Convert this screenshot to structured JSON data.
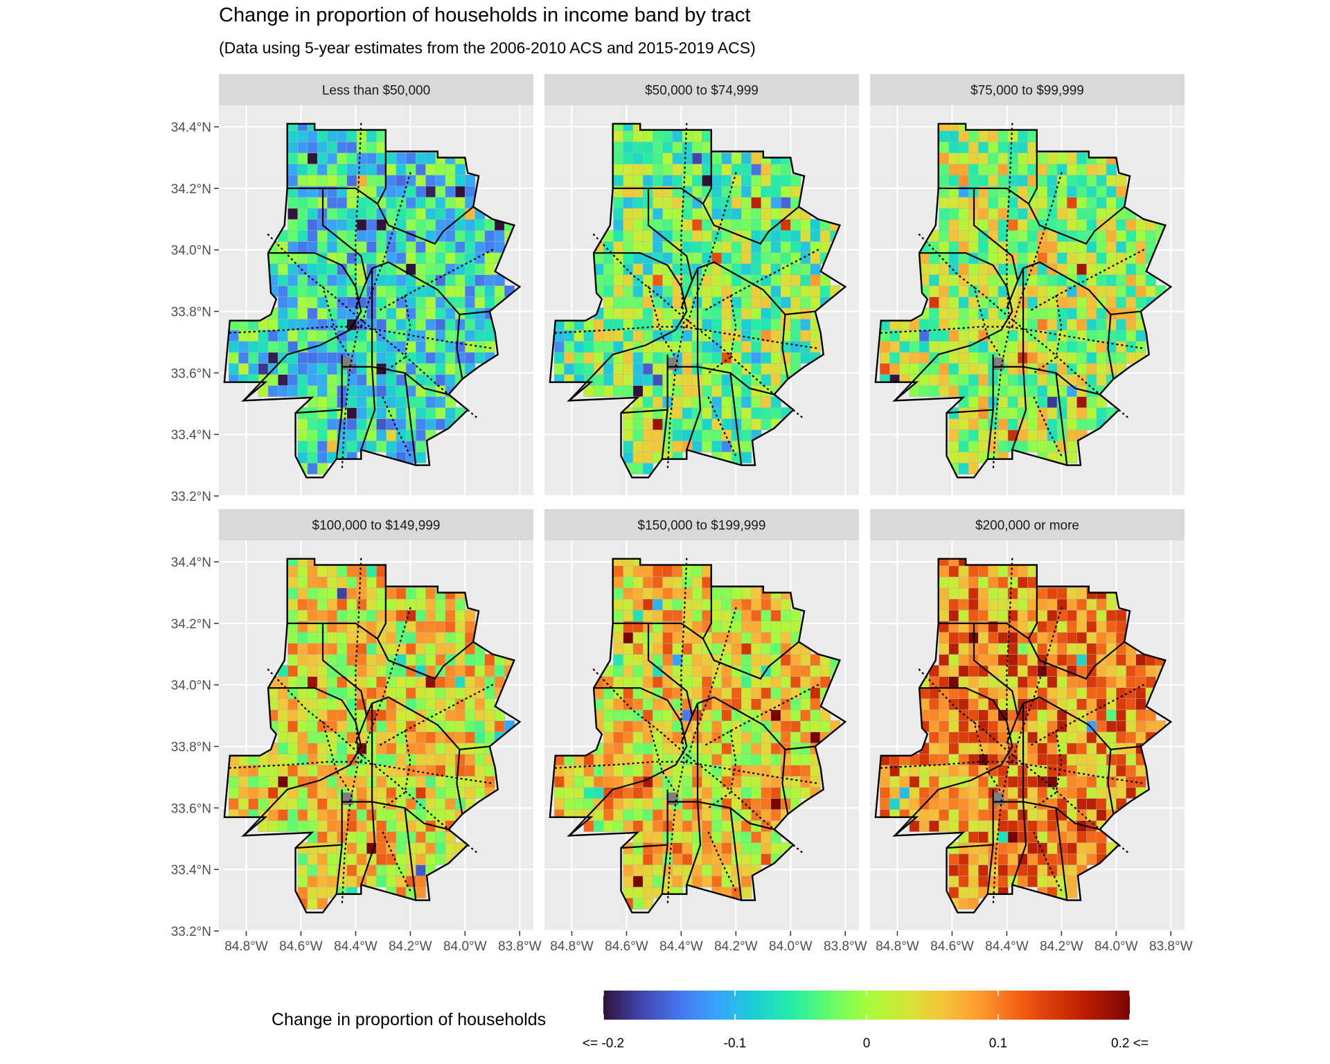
{
  "title": "Change in proportion of households in income band by tract",
  "subtitle": "(Data using 5-year estimates from the 2006-2010 ACS and 2015-2019 ACS)",
  "facets": [
    {
      "label": "Less than $50,000",
      "dominant_change": -0.07
    },
    {
      "label": "$50,000 to $74,999",
      "dominant_change": -0.02
    },
    {
      "label": "$75,000 to $99,999",
      "dominant_change": 0.0
    },
    {
      "label": "$100,000 to $149,999",
      "dominant_change": 0.04
    },
    {
      "label": "$150,000 to $199,999",
      "dominant_change": 0.05
    },
    {
      "label": "$200,000 or more",
      "dominant_change": 0.09
    }
  ],
  "axes": {
    "y_ticks": [
      "34.4°N",
      "34.2°N",
      "34.0°N",
      "33.8°N",
      "33.6°N",
      "33.4°N",
      "33.2°N"
    ],
    "x_ticks": [
      "84.8°W",
      "84.6°W",
      "84.4°W",
      "84.2°W",
      "84.0°W",
      "83.8°W"
    ],
    "lat_range": [
      33.2,
      34.47
    ],
    "lon_range": [
      -84.9,
      -83.75
    ]
  },
  "legend": {
    "title": "Change in proportion of households",
    "ticks": [
      "<= -0.2",
      "-0.1",
      "0",
      "0.1",
      "0.2 <="
    ],
    "range": [
      -0.2,
      0.2
    ],
    "colors": [
      "#30123b",
      "#4145ab",
      "#4675ed",
      "#39a2fc",
      "#1bcfd4",
      "#24eca6",
      "#61fc6c",
      "#a4fc3b",
      "#d1e834",
      "#f3c63a",
      "#fe9b2d",
      "#f36315",
      "#d93806",
      "#b11901",
      "#7a0403"
    ]
  },
  "colors": {
    "panel_bg": "#ebebeb",
    "strip_bg": "#d9d9d9",
    "grid": "#ffffff",
    "missing": "#7f7f7f"
  }
}
